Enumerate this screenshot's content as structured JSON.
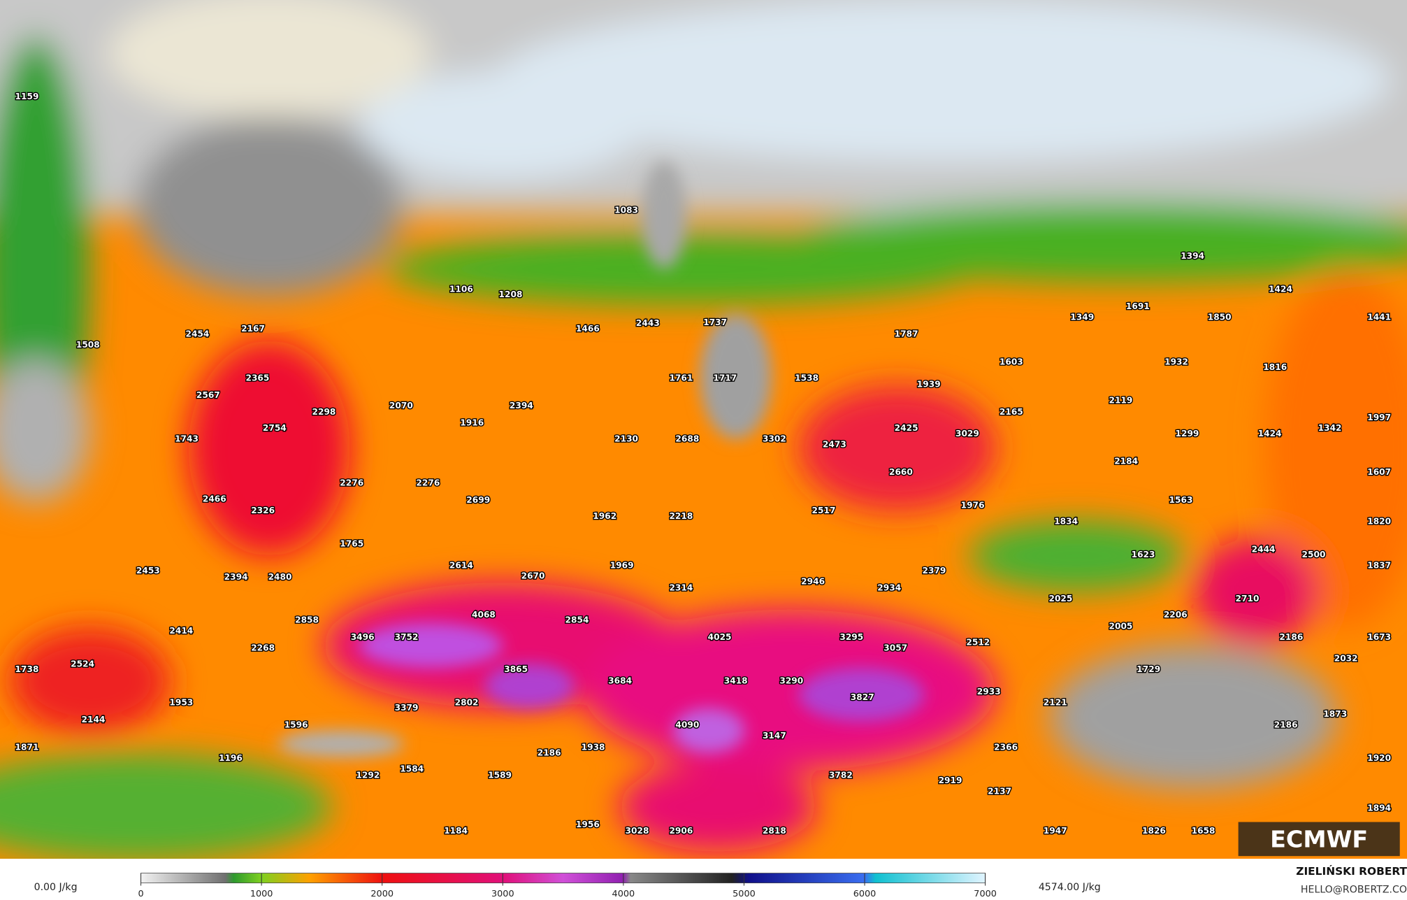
{
  "map": {
    "labels": [
      1159,
      1508,
      2454,
      2167,
      2365,
      2567,
      2298,
      2070,
      1916,
      2394,
      1106,
      1208,
      1466,
      1083,
      2443,
      1737,
      1761,
      1717,
      1538,
      2754,
      1743,
      2276,
      2276,
      2699,
      2130,
      2688,
      3302,
      2473,
      2466,
      2326,
      1765,
      1962,
      2218,
      2517,
      2453,
      2394,
      2480,
      2614,
      2670,
      1969,
      2314,
      2946,
      2934,
      2379,
      2858,
      4068,
      2854,
      2414,
      2268,
      3496,
      3752,
      4025,
      3295,
      3057,
      2512,
      1738,
      2524,
      3865,
      3684,
      3418,
      3290,
      3827,
      2933,
      1953,
      3379,
      2802,
      2144,
      1596,
      4090,
      3147,
      1871,
      2186,
      1938,
      2366,
      1196,
      1292,
      1584,
      1589,
      3782,
      2919,
      2137,
      1184,
      1956,
      3028,
      2906,
      2818,
      1947,
      1826,
      1658,
      1894,
      1394,
      1424,
      1349,
      1691,
      1850,
      1441,
      1787,
      1603,
      1932,
      1816,
      1939,
      2119,
      2165,
      2425,
      3029,
      1299,
      1424,
      1342,
      1997,
      2184,
      2660,
      1607,
      1976,
      1563,
      1834,
      1820,
      2444,
      2500,
      1623,
      1837,
      2025,
      2710,
      2206,
      2005,
      2186,
      1673,
      2032,
      1729,
      2121,
      1873,
      2186,
      1920
    ]
  },
  "colorbar": {
    "min_label": "0.00 J/kg",
    "max_label": "4574.00 J/kg",
    "range": [
      0,
      7000
    ],
    "ticks": [
      0,
      1000,
      2000,
      3000,
      4000,
      5000,
      6000,
      7000
    ]
  },
  "credit": {
    "name": "ZIELIŃSKI ROBERT",
    "email": "HELLO@ROBERTZ.CO"
  },
  "logo": "ECMWF"
}
